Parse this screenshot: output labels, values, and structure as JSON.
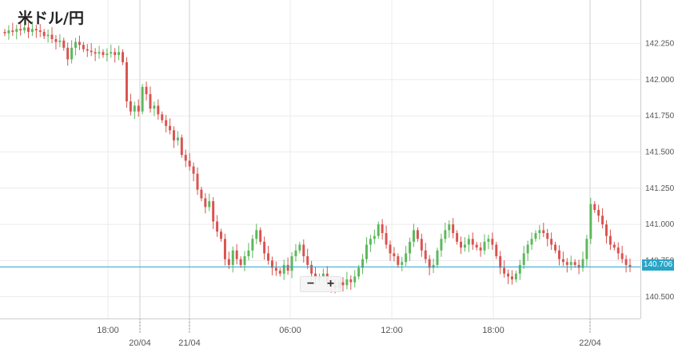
{
  "title": "米ドル/円",
  "zoom": {
    "minus_label": "−",
    "plus_label": "+"
  },
  "current_price_label": "140.706",
  "colors": {
    "up": "#5cb85c",
    "down": "#d9534f",
    "price_line": "#26a5c6",
    "grid": "#ebebeb",
    "axis": "#cccccc"
  },
  "chart_data": {
    "type": "candlestick",
    "title": "米ドル/円",
    "y_ticks": [
      "142.250",
      "142.000",
      "141.750",
      "141.500",
      "141.250",
      "141.000",
      "140.750",
      "140.500"
    ],
    "y_tick_values": [
      142.25,
      142.0,
      141.75,
      141.5,
      141.25,
      141.0,
      140.75,
      140.5
    ],
    "ylim": [
      140.35,
      142.55
    ],
    "x_ticks": [
      "18:00",
      "06:00",
      "12:00",
      "18:00"
    ],
    "x_date_ticks": [
      "20/04",
      "21/04",
      "22/04"
    ],
    "current_price": 140.706,
    "grid": true,
    "candles_close_trend": [
      142.32,
      142.34,
      142.33,
      142.35,
      142.34,
      142.36,
      142.33,
      142.35,
      142.34,
      142.33,
      142.3,
      142.31,
      142.28,
      142.26,
      142.27,
      142.22,
      142.14,
      142.22,
      142.26,
      142.24,
      142.21,
      142.2,
      142.19,
      142.18,
      142.19,
      142.17,
      142.18,
      142.19,
      142.17,
      142.19,
      142.12,
      141.85,
      141.78,
      141.82,
      141.78,
      141.95,
      141.9,
      141.8,
      141.82,
      141.76,
      141.72,
      141.68,
      141.65,
      141.58,
      141.6,
      141.48,
      141.44,
      141.4,
      141.35,
      141.24,
      141.18,
      141.12,
      141.16,
      141.02,
      140.95,
      140.9,
      140.76,
      140.72,
      140.82,
      140.76,
      140.72,
      140.78,
      140.82,
      140.9,
      140.96,
      140.88,
      140.8,
      140.75,
      140.7,
      140.68,
      140.66,
      140.72,
      140.68,
      140.78,
      140.82,
      140.86,
      140.78,
      140.72,
      140.66,
      140.62,
      140.64,
      140.66,
      140.6,
      140.58,
      140.56,
      140.6,
      140.58,
      140.62,
      140.6,
      140.64,
      140.7,
      140.76,
      140.86,
      140.9,
      140.92,
      141.0,
      140.94,
      140.86,
      140.8,
      140.78,
      140.72,
      140.74,
      140.8,
      140.88,
      140.96,
      140.9,
      140.82,
      140.76,
      140.7,
      140.72,
      140.82,
      140.9,
      140.96,
      141.0,
      140.94,
      140.88,
      140.84,
      140.86,
      140.9,
      140.86,
      140.84,
      140.82,
      140.88,
      140.9,
      140.86,
      140.78,
      140.7,
      140.66,
      140.64,
      140.62,
      140.66,
      140.72,
      140.8,
      140.86,
      140.9,
      140.94,
      140.96,
      140.94,
      140.9,
      140.86,
      140.82,
      140.76,
      140.74,
      140.72,
      140.74,
      140.72,
      140.7,
      140.76,
      140.9,
      141.14,
      141.1,
      141.06,
      141.0,
      140.92,
      140.86,
      140.84,
      140.8,
      140.76,
      140.72,
      140.706
    ]
  }
}
